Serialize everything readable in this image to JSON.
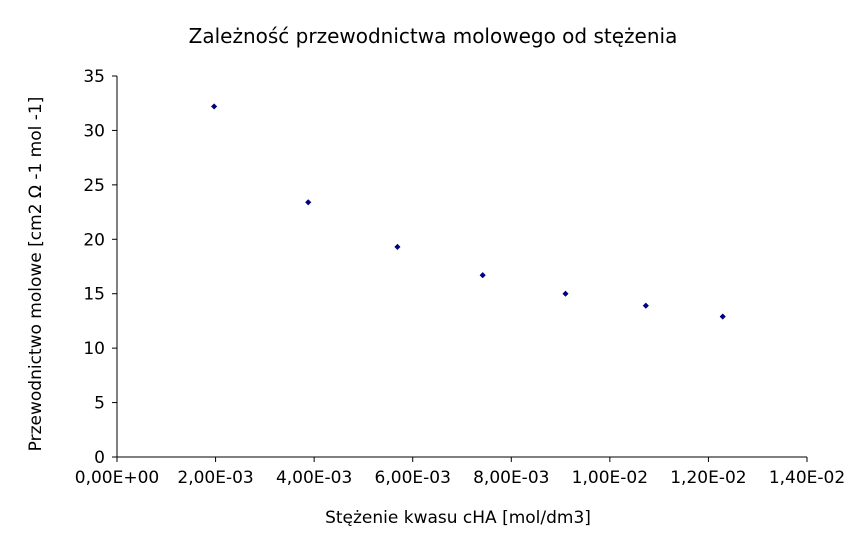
{
  "chart_data": {
    "type": "scatter",
    "title": "Zależność przewodnictwa molowego od stężenia",
    "xlabel": "Stężenie kwasu cHA [mol/dm3]",
    "ylabel": "Przewodnictwo molowe [cm2 Ω -1 mol -1]",
    "xlim": [
      0,
      0.014
    ],
    "ylim": [
      0,
      35
    ],
    "x_ticks": [
      {
        "value": 0,
        "label": "0,00E+00"
      },
      {
        "value": 0.002,
        "label": "2,00E-03"
      },
      {
        "value": 0.004,
        "label": "4,00E-03"
      },
      {
        "value": 0.006,
        "label": "6,00E-03"
      },
      {
        "value": 0.008,
        "label": "8,00E-03"
      },
      {
        "value": 0.01,
        "label": "1,00E-02"
      },
      {
        "value": 0.012,
        "label": "1,20E-02"
      },
      {
        "value": 0.014,
        "label": "1,40E-02"
      }
    ],
    "y_ticks": [
      {
        "value": 0,
        "label": "0"
      },
      {
        "value": 5,
        "label": "5"
      },
      {
        "value": 10,
        "label": "10"
      },
      {
        "value": 15,
        "label": "15"
      },
      {
        "value": 20,
        "label": "20"
      },
      {
        "value": 25,
        "label": "25"
      },
      {
        "value": 30,
        "label": "30"
      },
      {
        "value": 35,
        "label": "35"
      }
    ],
    "grid": false,
    "legend": "none",
    "series": [
      {
        "color": "#000080",
        "marker": "diamond",
        "points": [
          {
            "x": 0.00197,
            "y": 32.2
          },
          {
            "x": 0.00388,
            "y": 23.4
          },
          {
            "x": 0.00569,
            "y": 19.3
          },
          {
            "x": 0.00742,
            "y": 16.7
          },
          {
            "x": 0.0091,
            "y": 15.0
          },
          {
            "x": 0.01073,
            "y": 13.9
          },
          {
            "x": 0.01229,
            "y": 12.9
          }
        ]
      }
    ]
  }
}
